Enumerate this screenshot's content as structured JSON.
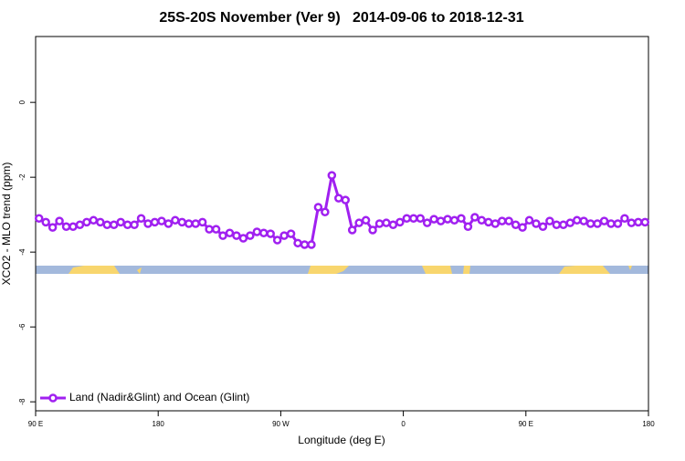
{
  "chart_data": {
    "type": "line",
    "title": "25S-20S November (Ver 9)   2014-09-06 to 2018-12-31",
    "xlabel": "Longitude (deg E)",
    "ylabel": "XCO2 - MLO trend (ppm)",
    "xlim": [
      90,
      540
    ],
    "ylim": [
      -8.24,
      1.76
    ],
    "xticks": [
      {
        "value": 90,
        "label": "90 E"
      },
      {
        "value": 180,
        "label": "180"
      },
      {
        "value": 270,
        "label": "90 W"
      },
      {
        "value": 360,
        "label": "0"
      },
      {
        "value": 450,
        "label": "90 E"
      },
      {
        "value": 540,
        "label": "180"
      }
    ],
    "yticks": [
      0,
      -2,
      -4,
      -6,
      -8
    ],
    "legend": "bottom-left",
    "x": [
      92.5,
      97.5,
      102.5,
      107.5,
      112.5,
      117.5,
      122.5,
      127.5,
      132.5,
      137.5,
      142.5,
      147.5,
      152.5,
      157.5,
      162.5,
      167.5,
      172.5,
      177.5,
      182.5,
      187.5,
      192.5,
      197.5,
      202.5,
      207.5,
      212.5,
      217.5,
      222.5,
      227.5,
      232.5,
      237.5,
      242.5,
      247.5,
      252.5,
      257.5,
      262.5,
      267.5,
      272.5,
      277.5,
      282.5,
      287.5,
      292.5,
      297.5,
      302.5,
      307.5,
      312.5,
      317.5,
      322.5,
      327.5,
      332.5,
      337.5,
      342.5,
      347.5,
      352.5,
      357.5,
      362.5,
      367.5,
      372.5,
      377.5,
      382.5,
      387.5,
      392.5,
      397.5,
      402.5,
      407.5,
      412.5,
      417.5,
      422.5,
      427.5,
      432.5,
      437.5,
      442.5,
      447.5,
      452.5,
      457.5,
      462.5,
      467.5,
      472.5,
      477.5,
      482.5,
      487.5,
      492.5,
      497.5,
      502.5,
      507.5,
      512.5,
      517.5,
      522.5,
      527.5,
      532.5,
      537.5
    ],
    "series": [
      {
        "name": "Land (Nadir&Glint) and Ocean (Glint)",
        "color": "#a020f0",
        "values": [
          -3.1,
          -3.2,
          -3.34,
          -3.17,
          -3.32,
          -3.32,
          -3.27,
          -3.2,
          -3.15,
          -3.2,
          -3.27,
          -3.27,
          -3.2,
          -3.27,
          -3.27,
          -3.1,
          -3.24,
          -3.2,
          -3.17,
          -3.24,
          -3.15,
          -3.2,
          -3.24,
          -3.24,
          -3.2,
          -3.39,
          -3.39,
          -3.56,
          -3.49,
          -3.56,
          -3.63,
          -3.56,
          -3.46,
          -3.49,
          -3.51,
          -3.68,
          -3.56,
          -3.51,
          -3.76,
          -3.8,
          -3.8,
          -2.8,
          -2.93,
          -1.95,
          -2.56,
          -2.61,
          -3.41,
          -3.22,
          -3.15,
          -3.41,
          -3.24,
          -3.22,
          -3.27,
          -3.2,
          -3.1,
          -3.1,
          -3.1,
          -3.22,
          -3.12,
          -3.17,
          -3.12,
          -3.15,
          -3.1,
          -3.32,
          -3.07,
          -3.15,
          -3.2,
          -3.24,
          -3.17,
          -3.17,
          -3.27,
          -3.34,
          -3.15,
          -3.24,
          -3.32,
          -3.17,
          -3.27,
          -3.27,
          -3.22,
          -3.15,
          -3.17,
          -3.24,
          -3.24,
          -3.17,
          -3.24,
          -3.24,
          -3.1,
          -3.22,
          -3.2,
          -3.2
        ]
      }
    ]
  }
}
